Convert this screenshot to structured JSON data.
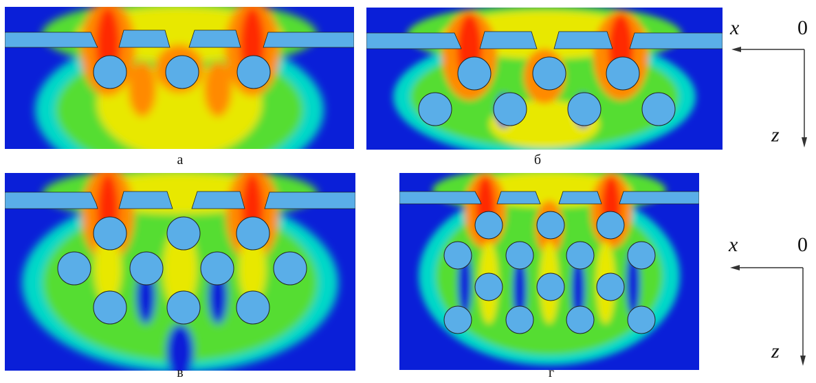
{
  "panels": [
    {
      "id": "a",
      "caption": "а"
    },
    {
      "id": "b",
      "caption": "б"
    },
    {
      "id": "v",
      "caption": "в"
    },
    {
      "id": "g",
      "caption": "г"
    }
  ],
  "axes": {
    "x_label": "x",
    "z_label": "z",
    "origin_label": "0"
  },
  "colors": {
    "background_field": "#0a1fd8",
    "plate_and_rods": "#5aaee8",
    "field_red": "#ff2a00",
    "field_orange": "#ff8a00",
    "field_yellow": "#e8e800",
    "field_green": "#55dd33",
    "field_cyan": "#00d8c8"
  }
}
